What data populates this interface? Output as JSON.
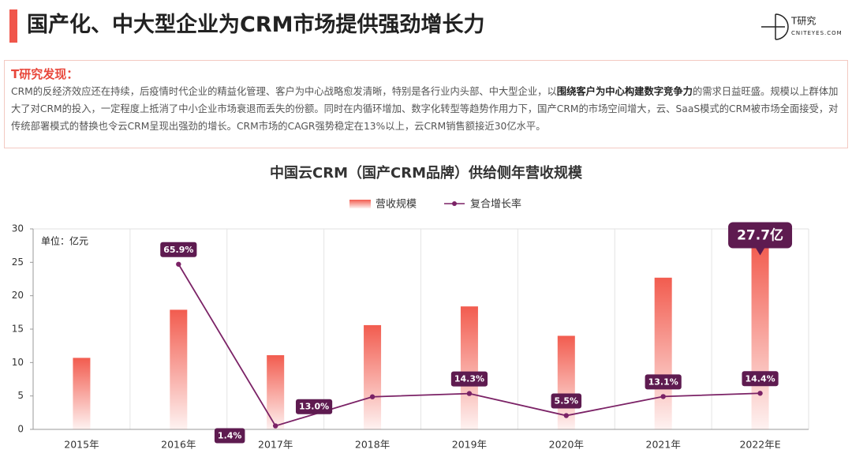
{
  "header": {
    "title": "国产化、中大型企业为CRM市场提供强劲增长力",
    "logo_brand": "T研究",
    "logo_site": "CNITEYES.COM"
  },
  "finding": {
    "title": "T研究发现：",
    "text": [
      "CRM的反经济效应还在持续，后疫情时代企业的精益化管理、客户为中心战略愈发清晰，特别是各行业内头部、中大型企业，以",
      "围绕客户为中心构建数字竞争力",
      "的需求日益旺盛。规模以上群体加大了对CRM的投入，一定程度上抵消了中小企业市场衰退而丢失的份额。同时在内循环增加、数字化转型等趋势作用力下，国产CRM的市场空间增大，云、SaaS模式的CRM被市场全面接受，对传统部署模式的替换也令云CRM呈现出强劲的增长。CRM市场的CAGR强势稳定在13%以上，云CRM销售额接近30亿水平。"
    ]
  },
  "chart_data": {
    "type": "bar",
    "title": "中国云CRM（国产CRM品牌）供给侧年营收规模",
    "y_unit_label": "单位：亿元",
    "categories": [
      "2015年",
      "2016年",
      "2017年",
      "2018年",
      "2019年",
      "2020年",
      "2021年",
      "2022年E"
    ],
    "series": [
      {
        "name": "营收规模",
        "type": "bar",
        "color": "#f25c4f",
        "values": [
          10.7,
          17.9,
          11.1,
          15.6,
          18.4,
          14.0,
          22.7,
          27.7
        ],
        "value_labels": [
          null,
          null,
          null,
          null,
          null,
          null,
          null,
          "27.7亿"
        ]
      },
      {
        "name": "复合增长率",
        "type": "line",
        "axis": "y2",
        "color": "#7b2266",
        "values": [
          null,
          65.9,
          1.4,
          13.0,
          14.3,
          5.5,
          13.1,
          14.4
        ],
        "value_labels": [
          null,
          "65.9%",
          "1.4%",
          "13.0%",
          "14.3%",
          "5.5%",
          "13.1%",
          "14.4%"
        ]
      }
    ],
    "ylim": [
      0,
      30
    ],
    "yticks": [
      0,
      5,
      10,
      15,
      20,
      25,
      30
    ],
    "y2lim": [
      0,
      80
    ],
    "grid": "x",
    "legend": "top"
  }
}
